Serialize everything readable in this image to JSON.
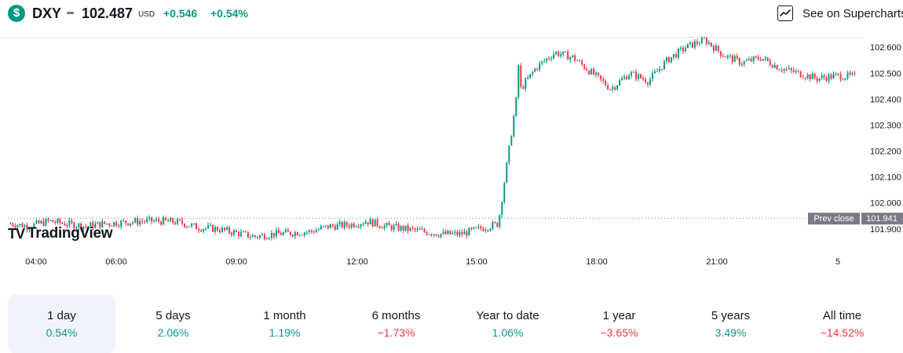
{
  "header": {
    "symbol": "DXY",
    "logo_glyph": "$",
    "price": "102.487",
    "currency": "USD",
    "change_abs": "+0.546",
    "change_pct": "+0.54%",
    "supercharts_label": "See on Supercharts",
    "supercharts_icon": "chart-icon"
  },
  "branding": {
    "logo_mark": "TV",
    "logo_text": "TradingView"
  },
  "chart_data": {
    "type": "candlestick",
    "title": "",
    "x_ticks": [
      "04:00",
      "06:00",
      "09:00",
      "12:00",
      "15:00",
      "18:00",
      "21:00",
      "5"
    ],
    "y_ticks": [
      "102.600",
      "102.500",
      "102.400",
      "102.300",
      "102.200",
      "102.100",
      "102.000",
      "101.900"
    ],
    "ylim": [
      101.86,
      102.64
    ],
    "prev_close": {
      "label": "Prev close",
      "value": 101.941
    },
    "last_price": 102.487,
    "colors": {
      "up": "#089981",
      "down": "#f23645",
      "grid": "#e0e3eb"
    },
    "series": [
      {
        "time": "03:00",
        "close": 101.92
      },
      {
        "time": "03:30",
        "close": 101.91
      },
      {
        "time": "04:00",
        "close": 101.93
      },
      {
        "time": "04:30",
        "close": 101.92
      },
      {
        "time": "05:00",
        "close": 101.91
      },
      {
        "time": "05:30",
        "close": 101.92
      },
      {
        "time": "06:00",
        "close": 101.925
      },
      {
        "time": "06:30",
        "close": 101.93
      },
      {
        "time": "07:00",
        "close": 101.93
      },
      {
        "time": "07:30",
        "close": 101.925
      },
      {
        "time": "08:00",
        "close": 101.905
      },
      {
        "time": "08:30",
        "close": 101.9
      },
      {
        "time": "09:00",
        "close": 101.885
      },
      {
        "time": "09:30",
        "close": 101.87
      },
      {
        "time": "10:00",
        "close": 101.88
      },
      {
        "time": "10:30",
        "close": 101.885
      },
      {
        "time": "11:00",
        "close": 101.89
      },
      {
        "time": "11:30",
        "close": 101.91
      },
      {
        "time": "12:00",
        "close": 101.915
      },
      {
        "time": "12:30",
        "close": 101.93
      },
      {
        "time": "13:00",
        "close": 101.91
      },
      {
        "time": "13:30",
        "close": 101.9
      },
      {
        "time": "14:00",
        "close": 101.89
      },
      {
        "time": "14:30",
        "close": 101.88
      },
      {
        "time": "15:00",
        "close": 101.88
      },
      {
        "time": "15:30",
        "close": 101.9
      },
      {
        "time": "15:45",
        "close": 101.92
      },
      {
        "time": "16:00",
        "close": 102.42
      },
      {
        "time": "16:15",
        "close": 102.52
      },
      {
        "time": "16:30",
        "close": 102.58
      },
      {
        "time": "17:00",
        "close": 102.56
      },
      {
        "time": "17:30",
        "close": 102.5
      },
      {
        "time": "18:00",
        "close": 102.44
      },
      {
        "time": "18:30",
        "close": 102.5
      },
      {
        "time": "19:00",
        "close": 102.47
      },
      {
        "time": "19:30",
        "close": 102.55
      },
      {
        "time": "20:00",
        "close": 102.6
      },
      {
        "time": "20:30",
        "close": 102.63
      },
      {
        "time": "21:00",
        "close": 102.57
      },
      {
        "time": "21:30",
        "close": 102.54
      },
      {
        "time": "22:00",
        "close": 102.56
      },
      {
        "time": "22:30",
        "close": 102.52
      },
      {
        "time": "23:00",
        "close": 102.5
      },
      {
        "time": "23:30",
        "close": 102.48
      },
      {
        "time": "00:00",
        "close": 102.49
      },
      {
        "time": "00:30",
        "close": 102.487
      }
    ]
  },
  "ranges": [
    {
      "label": "1 day",
      "value": "0.54%",
      "direction": "up",
      "active": true
    },
    {
      "label": "5 days",
      "value": "2.06%",
      "direction": "up",
      "active": false
    },
    {
      "label": "1 month",
      "value": "1.19%",
      "direction": "up",
      "active": false
    },
    {
      "label": "6 months",
      "value": "−1.73%",
      "direction": "down",
      "active": false
    },
    {
      "label": "Year to date",
      "value": "1.06%",
      "direction": "up",
      "active": false
    },
    {
      "label": "1 year",
      "value": "−3.65%",
      "direction": "down",
      "active": false
    },
    {
      "label": "5 years",
      "value": "3.49%",
      "direction": "up",
      "active": false
    },
    {
      "label": "All time",
      "value": "−14.52%",
      "direction": "down",
      "active": false
    }
  ]
}
